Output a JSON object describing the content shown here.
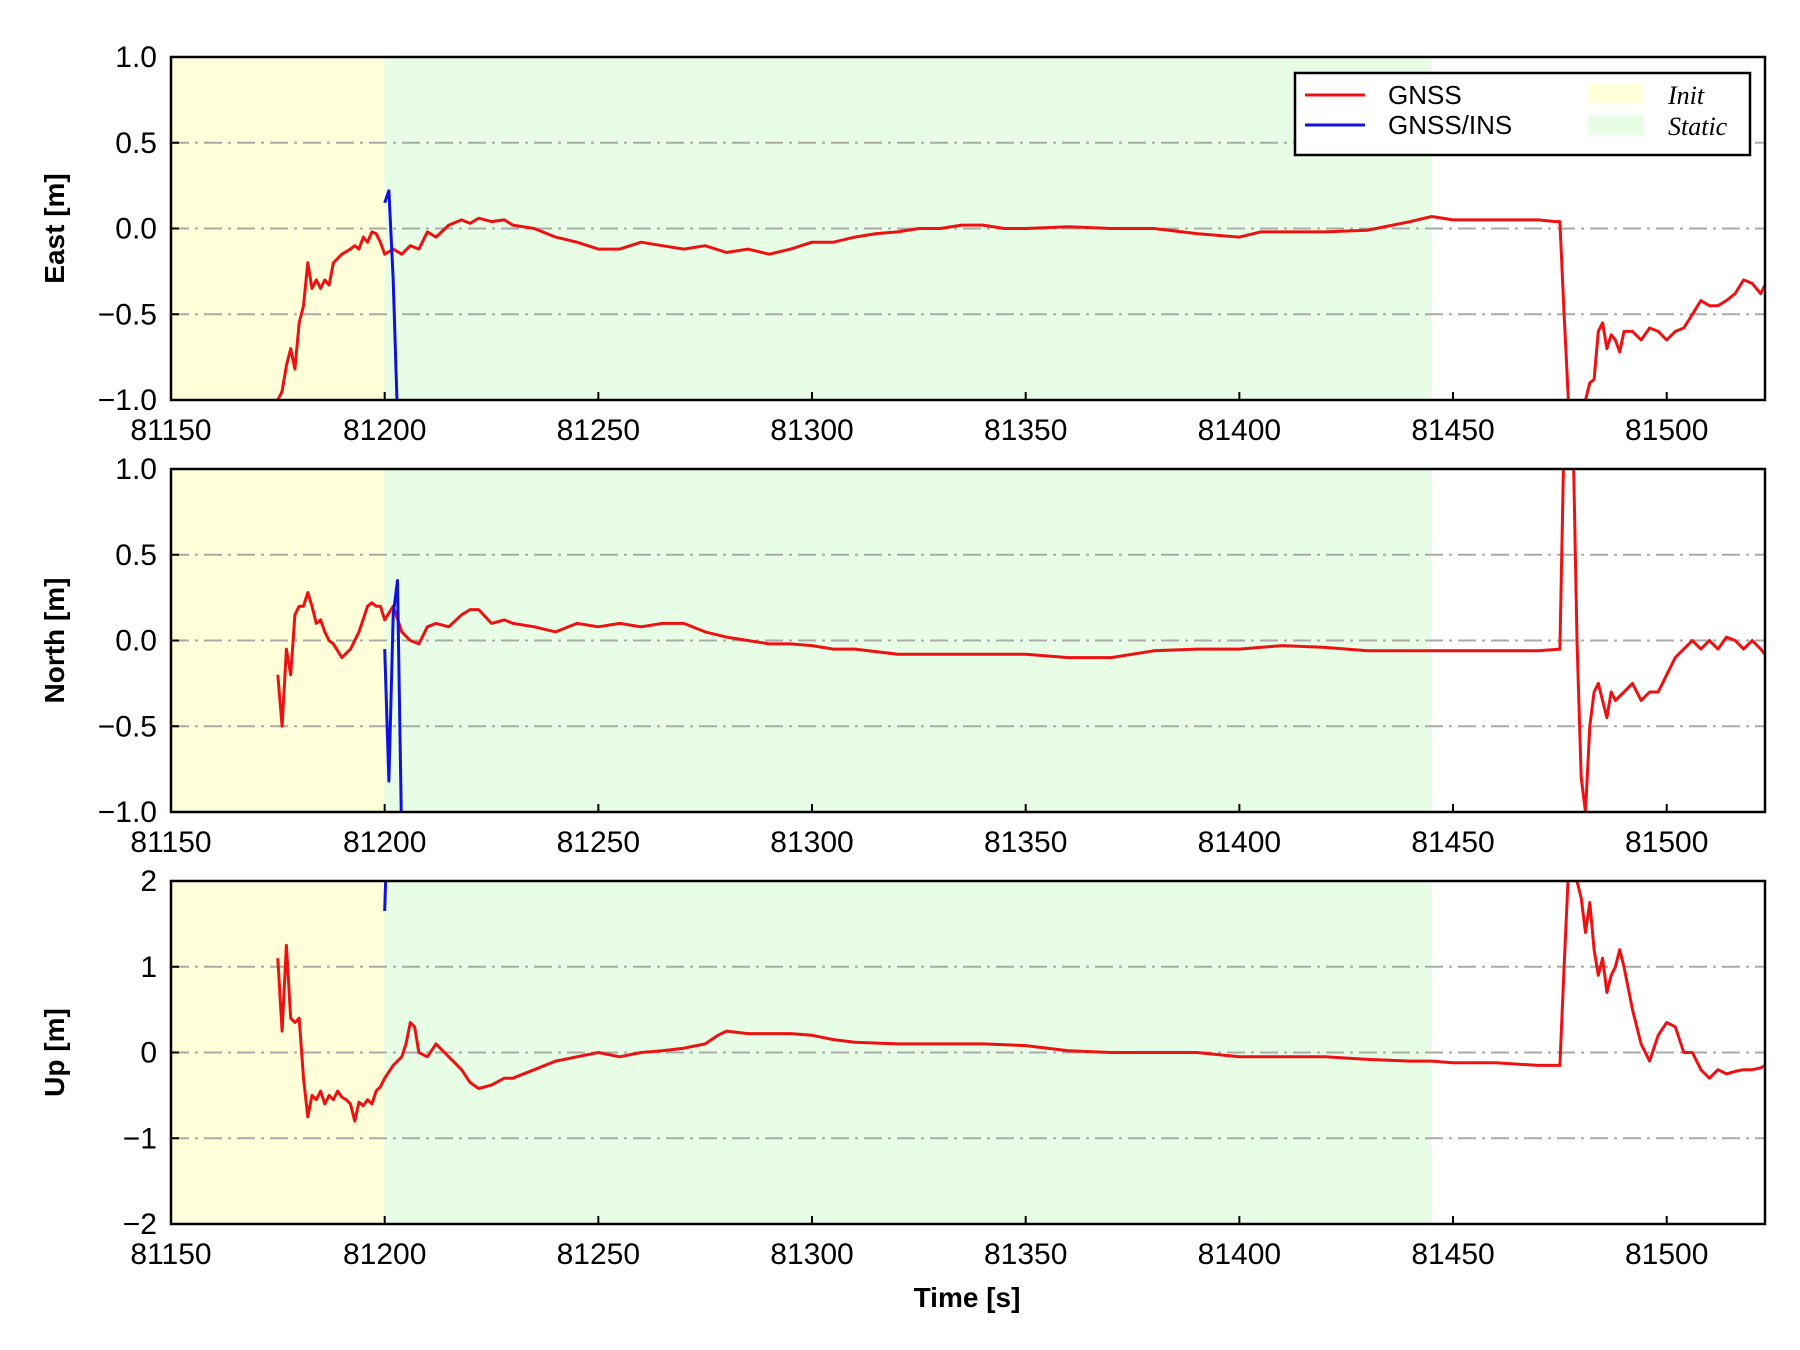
{
  "colors": {
    "gnss": "#ee1111",
    "gnss_ins": "#1111dd",
    "init_region": "#ffffd9",
    "static_region": "#e8fde6",
    "grid": "#aaaaaa"
  },
  "chart_data": {
    "type": "line",
    "xlabel": "Time [s]",
    "xlim": [
      81150,
      81523
    ],
    "xticks": [
      81150,
      81200,
      81250,
      81300,
      81350,
      81400,
      81450,
      81500
    ],
    "grid": "horizontal dash-dot",
    "legend_position": "top-right",
    "legend": [
      {
        "label": "GNSS",
        "kind": "line",
        "color": "#ee1111"
      },
      {
        "label": "GNSS/INS",
        "kind": "line",
        "color": "#1111dd"
      },
      {
        "label": "Init",
        "kind": "patch",
        "color": "#ffffd9"
      },
      {
        "label": "Static",
        "kind": "patch",
        "color": "#e8fde6"
      }
    ],
    "regions": [
      {
        "label": "Init",
        "x": [
          81150,
          81200
        ],
        "color": "#ffffd9"
      },
      {
        "label": "Static",
        "x": [
          81200,
          81445
        ],
        "color": "#e8fde6"
      }
    ],
    "panels": [
      {
        "ylabel": "East [m]",
        "ylim": [
          -1.0,
          1.0
        ],
        "yticks": [
          -1.0,
          -0.5,
          0.0,
          0.5,
          1.0
        ],
        "ytick_labels": [
          "−1.0",
          "−0.5",
          "0.0",
          "0.5",
          "1.0"
        ],
        "series": [
          {
            "name": "GNSS",
            "x": [
              81175,
              81176,
              81177,
              81178,
              81179,
              81180,
              81181,
              81182,
              81183,
              81184,
              81185,
              81186,
              81187,
              81188,
              81190,
              81192,
              81193,
              81194,
              81195,
              81196,
              81197,
              81198,
              81199,
              81200,
              81202,
              81204,
              81206,
              81208,
              81210,
              81212,
              81215,
              81218,
              81220,
              81222,
              81225,
              81228,
              81230,
              81235,
              81240,
              81245,
              81250,
              81255,
              81260,
              81265,
              81270,
              81275,
              81280,
              81285,
              81290,
              81295,
              81300,
              81305,
              81310,
              81315,
              81320,
              81325,
              81330,
              81335,
              81340,
              81345,
              81350,
              81360,
              81370,
              81380,
              81390,
              81395,
              81400,
              81405,
              81410,
              81420,
              81430,
              81440,
              81445,
              81450,
              81460,
              81470,
              81474,
              81475,
              81476,
              81477,
              81478,
              81479,
              81480,
              81481,
              81482,
              81483,
              81484,
              81485,
              81486,
              81487,
              81488,
              81489,
              81490,
              81492,
              81494,
              81496,
              81498,
              81500,
              81502,
              81504,
              81506,
              81508,
              81510,
              81512,
              81514,
              81516,
              81518,
              81520,
              81522,
              81523
            ],
            "y": [
              -1.0,
              -0.95,
              -0.8,
              -0.7,
              -0.82,
              -0.55,
              -0.45,
              -0.2,
              -0.35,
              -0.3,
              -0.35,
              -0.3,
              -0.33,
              -0.2,
              -0.15,
              -0.12,
              -0.1,
              -0.12,
              -0.05,
              -0.08,
              -0.02,
              -0.03,
              -0.08,
              -0.15,
              -0.12,
              -0.15,
              -0.1,
              -0.12,
              -0.02,
              -0.05,
              0.02,
              0.05,
              0.03,
              0.06,
              0.04,
              0.05,
              0.02,
              0.0,
              -0.05,
              -0.08,
              -0.12,
              -0.12,
              -0.08,
              -0.1,
              -0.12,
              -0.1,
              -0.14,
              -0.12,
              -0.15,
              -0.12,
              -0.08,
              -0.08,
              -0.05,
              -0.03,
              -0.02,
              0.0,
              0.0,
              0.02,
              0.02,
              0.0,
              0.0,
              0.01,
              0.0,
              0.0,
              -0.03,
              -0.04,
              -0.05,
              -0.02,
              -0.02,
              -0.02,
              -0.01,
              0.04,
              0.07,
              0.05,
              0.05,
              0.05,
              0.04,
              0.04,
              -0.5,
              -1.0,
              -1.1,
              -1.2,
              -1.3,
              -1.0,
              -0.9,
              -0.88,
              -0.6,
              -0.55,
              -0.7,
              -0.62,
              -0.65,
              -0.72,
              -0.6,
              -0.6,
              -0.65,
              -0.58,
              -0.6,
              -0.65,
              -0.6,
              -0.58,
              -0.5,
              -0.42,
              -0.45,
              -0.45,
              -0.42,
              -0.38,
              -0.3,
              -0.32,
              -0.38,
              -0.33
            ]
          },
          {
            "name": "GNSS/INS",
            "x": [
              81200,
              81201,
              81202,
              81203,
              81204
            ],
            "y": [
              0.15,
              0.22,
              -0.3,
              -1.1,
              -1.5
            ]
          }
        ]
      },
      {
        "ylabel": "North [m]",
        "ylim": [
          -1.0,
          1.0
        ],
        "yticks": [
          -1.0,
          -0.5,
          0.0,
          0.5,
          1.0
        ],
        "ytick_labels": [
          "−1.0",
          "−0.5",
          "0.0",
          "0.5",
          "1.0"
        ],
        "series": [
          {
            "name": "GNSS",
            "x": [
              81175,
              81176,
              81177,
              81178,
              81179,
              81180,
              81181,
              81182,
              81183,
              81184,
              81185,
              81186,
              81187,
              81188,
              81190,
              81192,
              81194,
              81196,
              81197,
              81198,
              81199,
              81200,
              81202,
              81204,
              81206,
              81208,
              81210,
              81212,
              81215,
              81218,
              81220,
              81222,
              81225,
              81228,
              81230,
              81235,
              81240,
              81245,
              81250,
              81255,
              81260,
              81265,
              81270,
              81275,
              81280,
              81285,
              81290,
              81295,
              81300,
              81305,
              81310,
              81320,
              81330,
              81340,
              81350,
              81360,
              81370,
              81380,
              81390,
              81400,
              81410,
              81420,
              81430,
              81440,
              81445,
              81450,
              81460,
              81470,
              81475,
              81476,
              81477,
              81478,
              81479,
              81480,
              81481,
              81482,
              81483,
              81484,
              81485,
              81486,
              81487,
              81488,
              81490,
              81492,
              81494,
              81496,
              81498,
              81500,
              81502,
              81504,
              81506,
              81508,
              81510,
              81512,
              81514,
              81516,
              81518,
              81520,
              81522,
              81523
            ],
            "y": [
              -0.2,
              -0.5,
              -0.05,
              -0.2,
              0.15,
              0.2,
              0.2,
              0.28,
              0.2,
              0.1,
              0.12,
              0.05,
              0.0,
              -0.02,
              -0.1,
              -0.05,
              0.05,
              0.2,
              0.22,
              0.2,
              0.2,
              0.12,
              0.2,
              0.05,
              0.0,
              -0.02,
              0.08,
              0.1,
              0.08,
              0.15,
              0.18,
              0.18,
              0.1,
              0.12,
              0.1,
              0.08,
              0.05,
              0.1,
              0.08,
              0.1,
              0.08,
              0.1,
              0.1,
              0.05,
              0.02,
              0.0,
              -0.02,
              -0.02,
              -0.03,
              -0.05,
              -0.05,
              -0.08,
              -0.08,
              -0.08,
              -0.08,
              -0.1,
              -0.1,
              -0.06,
              -0.05,
              -0.05,
              -0.03,
              -0.04,
              -0.06,
              -0.06,
              -0.06,
              -0.06,
              -0.06,
              -0.06,
              -0.05,
              1.2,
              1.8,
              1.3,
              0.0,
              -0.8,
              -1.0,
              -0.5,
              -0.3,
              -0.25,
              -0.35,
              -0.45,
              -0.3,
              -0.35,
              -0.3,
              -0.25,
              -0.35,
              -0.3,
              -0.3,
              -0.2,
              -0.1,
              -0.05,
              0.0,
              -0.05,
              0.0,
              -0.05,
              0.02,
              0.0,
              -0.05,
              0.0,
              -0.05,
              -0.08
            ]
          },
          {
            "name": "GNSS/INS",
            "x": [
              81200,
              81201,
              81202,
              81203,
              81204
            ],
            "y": [
              -0.05,
              -0.82,
              0.15,
              0.35,
              -1.2
            ]
          }
        ]
      },
      {
        "ylabel": "Up [m]",
        "ylim": [
          -2,
          2
        ],
        "yticks": [
          -2,
          -1,
          0,
          1,
          2
        ],
        "ytick_labels": [
          "−2",
          "−1",
          "0",
          "1",
          "2"
        ],
        "series": [
          {
            "name": "GNSS",
            "x": [
              81175,
              81176,
              81177,
              81178,
              81179,
              81180,
              81181,
              81182,
              81183,
              81184,
              81185,
              81186,
              81187,
              81188,
              81189,
              81190,
              81191,
              81192,
              81193,
              81194,
              81195,
              81196,
              81197,
              81198,
              81199,
              81200,
              81202,
              81204,
              81205,
              81206,
              81207,
              81208,
              81210,
              81212,
              81215,
              81218,
              81220,
              81222,
              81225,
              81228,
              81230,
              81235,
              81240,
              81245,
              81250,
              81255,
              81260,
              81265,
              81270,
              81275,
              81278,
              81280,
              81285,
              81290,
              81295,
              81300,
              81305,
              81310,
              81320,
              81330,
              81340,
              81350,
              81360,
              81370,
              81380,
              81390,
              81400,
              81410,
              81420,
              81430,
              81440,
              81445,
              81450,
              81460,
              81470,
              81475,
              81476,
              81477,
              81478,
              81479,
              81480,
              81481,
              81482,
              81483,
              81484,
              81485,
              81486,
              81487,
              81488,
              81489,
              81490,
              81492,
              81494,
              81496,
              81498,
              81500,
              81502,
              81504,
              81506,
              81508,
              81510,
              81512,
              81514,
              81516,
              81518,
              81520,
              81522,
              81523
            ],
            "y": [
              1.1,
              0.25,
              1.25,
              0.4,
              0.35,
              0.4,
              -0.3,
              -0.75,
              -0.5,
              -0.55,
              -0.45,
              -0.6,
              -0.5,
              -0.55,
              -0.45,
              -0.52,
              -0.55,
              -0.6,
              -0.8,
              -0.58,
              -0.62,
              -0.55,
              -0.6,
              -0.45,
              -0.4,
              -0.3,
              -0.15,
              -0.05,
              0.1,
              0.35,
              0.3,
              0.0,
              -0.05,
              0.1,
              -0.05,
              -0.2,
              -0.35,
              -0.42,
              -0.38,
              -0.3,
              -0.3,
              -0.2,
              -0.1,
              -0.05,
              0.0,
              -0.05,
              0.0,
              0.02,
              0.05,
              0.1,
              0.2,
              0.25,
              0.22,
              0.22,
              0.22,
              0.2,
              0.15,
              0.12,
              0.1,
              0.1,
              0.1,
              0.08,
              0.02,
              0.0,
              0.0,
              0.0,
              -0.05,
              -0.05,
              -0.05,
              -0.08,
              -0.1,
              -0.1,
              -0.12,
              -0.12,
              -0.15,
              -0.15,
              1.0,
              2.1,
              2.2,
              2.0,
              1.8,
              1.4,
              1.75,
              1.2,
              0.9,
              1.1,
              0.7,
              0.9,
              1.0,
              1.2,
              1.0,
              0.5,
              0.1,
              -0.1,
              0.2,
              0.35,
              0.3,
              0.0,
              0.0,
              -0.2,
              -0.3,
              -0.2,
              -0.25,
              -0.22,
              -0.2,
              -0.2,
              -0.18,
              -0.15
            ]
          },
          {
            "name": "GNSS/INS",
            "x": [
              81200,
              81200.4
            ],
            "y": [
              1.65,
              2.3
            ]
          }
        ]
      }
    ]
  }
}
